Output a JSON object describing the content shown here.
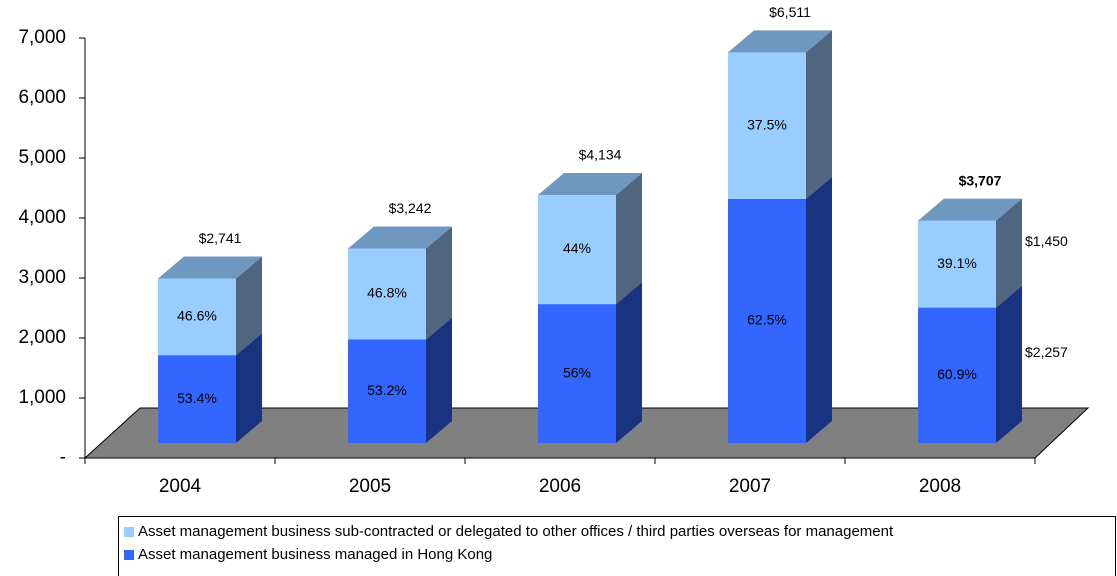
{
  "chart_data": {
    "type": "bar3d_stacked",
    "categories": [
      "2004",
      "2005",
      "2006",
      "2007",
      "2008"
    ],
    "series": [
      {
        "name": "Asset management business managed in Hong Kong",
        "color": "#3366ff",
        "side_color": "#1a3380",
        "values": [
          1464,
          1725,
          2315,
          4069,
          2257
        ],
        "share_labels": [
          "53.4%",
          "53.2%",
          "56%",
          "62.5%",
          "60.9%"
        ],
        "value_labels": [
          null,
          null,
          null,
          null,
          "$2,257"
        ]
      },
      {
        "name": "Asset management business sub-contracted or delegated to other offices / third parties overseas for management",
        "color": "#99ccff",
        "side_color": "#4f6580",
        "values": [
          1277,
          1517,
          1819,
          2442,
          1450
        ],
        "share_labels": [
          "46.6%",
          "46.8%",
          "44%",
          "37.5%",
          "39.1%"
        ],
        "value_labels": [
          null,
          null,
          null,
          null,
          "$1,450"
        ]
      }
    ],
    "totals": [
      2741,
      3242,
      4134,
      6511,
      3707
    ],
    "total_labels": [
      "$2,741",
      "$3,242",
      "$4,134",
      "$6,511",
      "$3,707"
    ],
    "top_color": "#6f98c0",
    "floor_color": "#808080",
    "ylim": [
      0,
      7000
    ],
    "yticks": [
      {
        "value": 0,
        "label": "-"
      },
      {
        "value": 1000,
        "label": "1,000"
      },
      {
        "value": 2000,
        "label": "2,000"
      },
      {
        "value": 3000,
        "label": "3,000"
      },
      {
        "value": 4000,
        "label": "4,000"
      },
      {
        "value": 5000,
        "label": "5,000"
      },
      {
        "value": 6000,
        "label": "6,000"
      },
      {
        "value": 7000,
        "label": "7,000"
      }
    ]
  }
}
